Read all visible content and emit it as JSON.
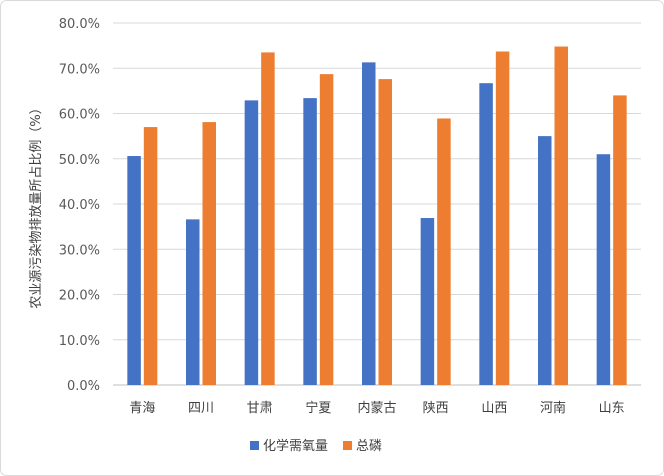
{
  "chart_data": {
    "type": "bar",
    "title": "",
    "xlabel": "",
    "ylabel": "农业源污染物排放量所占比例（%）",
    "ylim": [
      0,
      80
    ],
    "yticks": [
      "0.0%",
      "10.0%",
      "20.0%",
      "30.0%",
      "40.0%",
      "50.0%",
      "60.0%",
      "70.0%",
      "80.0%"
    ],
    "grid": true,
    "legend_position": "bottom",
    "categories": [
      "青海",
      "四川",
      "甘肃",
      "宁夏",
      "内蒙古",
      "陕西",
      "山西",
      "河南",
      "山东"
    ],
    "series": [
      {
        "name": "化学需氧量",
        "color": "#4472C4",
        "values": [
          50.6,
          36.6,
          62.9,
          63.4,
          71.3,
          36.9,
          66.7,
          55.0,
          51.0
        ]
      },
      {
        "name": "总磷",
        "color": "#ED7D31",
        "values": [
          57.0,
          58.1,
          73.5,
          68.7,
          67.6,
          58.9,
          73.7,
          74.8,
          64.0
        ]
      }
    ]
  }
}
